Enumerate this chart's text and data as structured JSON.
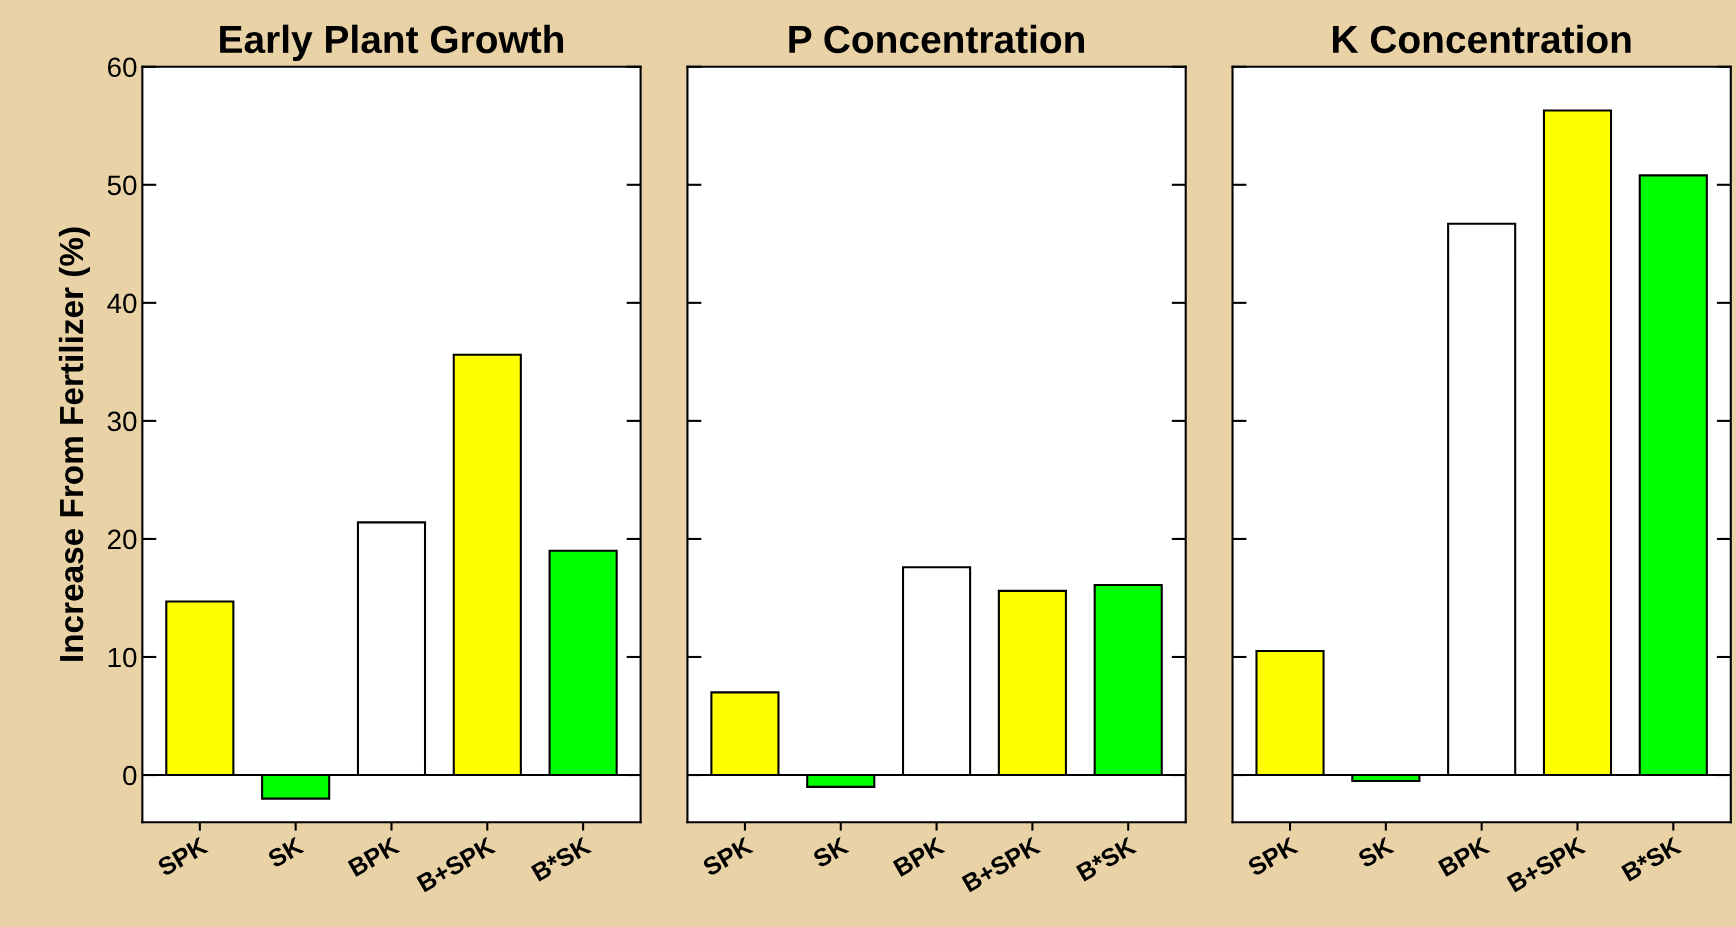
{
  "chart_data": [
    {
      "type": "bar",
      "title": "Early Plant Growth",
      "ylabel": "Increase From Fertilizer (%)",
      "categories": [
        "SPK",
        "SK",
        "BPK",
        "B+SPK",
        "B*SK"
      ],
      "values": [
        14.7,
        -2.0,
        21.4,
        35.6,
        19.0
      ],
      "colors": [
        "#ffff00",
        "#00ff00",
        "#ffffff",
        "#ffff00",
        "#00ff00"
      ],
      "ylim": [
        -4,
        60
      ],
      "yticks": [
        0,
        10,
        20,
        30,
        40,
        50,
        60
      ],
      "ref_lines": [
        {
          "axis": "y",
          "value": 0,
          "color": "#000000"
        }
      ],
      "grid": false
    },
    {
      "type": "bar",
      "title": "P Concentration",
      "categories": [
        "SPK",
        "SK",
        "BPK",
        "B+SPK",
        "B*SK"
      ],
      "values": [
        7.0,
        -1.0,
        17.6,
        15.6,
        16.1
      ],
      "colors": [
        "#ffff00",
        "#00ff00",
        "#ffffff",
        "#ffff00",
        "#00ff00"
      ],
      "ylim": [
        -4,
        60
      ],
      "yticks": [
        0,
        10,
        20,
        30,
        40,
        50,
        60
      ],
      "tick_labels": "x",
      "ref_lines": [
        {
          "axis": "y",
          "value": 0,
          "color": "#000000"
        }
      ],
      "grid": false
    },
    {
      "type": "bar",
      "title": "K Concentration",
      "categories": [
        "SPK",
        "SK",
        "BPK",
        "B+SPK",
        "B*SK"
      ],
      "values": [
        10.5,
        -0.5,
        46.7,
        56.3,
        50.8
      ],
      "colors": [
        "#ffff00",
        "#00ff00",
        "#ffffff",
        "#ffff00",
        "#00ff00"
      ],
      "ylim": [
        -4,
        60
      ],
      "yticks": [
        0,
        10,
        20,
        30,
        40,
        50,
        60
      ],
      "tick_labels": "x",
      "ref_lines": [
        {
          "axis": "y",
          "value": 0,
          "color": "#000000"
        }
      ],
      "grid": false
    }
  ]
}
